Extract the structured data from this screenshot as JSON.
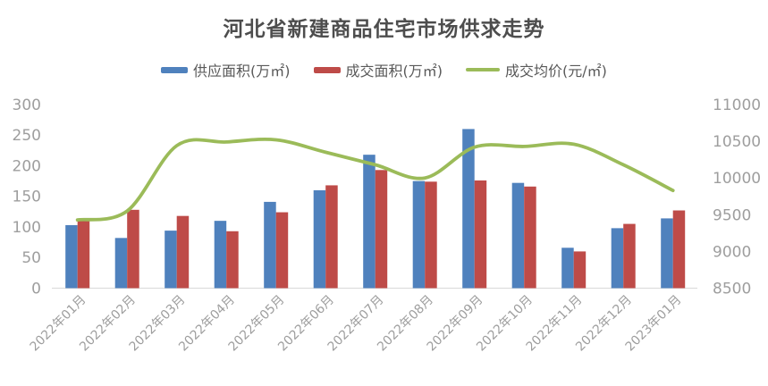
{
  "title": "河北省新建商品住宅市场供求走势",
  "legend": [
    {
      "label": "供应面积(万㎡)",
      "color": "#4f81bd",
      "type": "bar"
    },
    {
      "label": "成交面积(万㎡)",
      "color": "#be4b48",
      "type": "bar"
    },
    {
      "label": "成交均价(元/㎡)",
      "color": "#9bbb59",
      "type": "line"
    }
  ],
  "colors": {
    "supply_bar": "#4f81bd",
    "transaction_bar": "#be4b48",
    "price_line": "#9bbb59",
    "axis_text": "#9e9e9e",
    "baseline": "#d9d9d9",
    "title_text": "#4d4d4d"
  },
  "chart_data": {
    "type": "bar",
    "subtype": "grouped bars + smooth line, dual y-axes",
    "title": "河北省新建商品住宅市场供求走势",
    "categories": [
      "2022年01月",
      "2022年02月",
      "2022年03月",
      "2022年04月",
      "2022年05月",
      "2022年06月",
      "2022年07月",
      "2022年08月",
      "2022年09月",
      "2022年10月",
      "2022年11月",
      "2022年12月",
      "2023年01月"
    ],
    "series": [
      {
        "name": "供应面积(万㎡)",
        "type": "bar",
        "axis": "left",
        "color": "#4f81bd",
        "values": [
          103,
          82,
          94,
          110,
          141,
          160,
          218,
          175,
          260,
          172,
          66,
          98,
          114
        ]
      },
      {
        "name": "成交面积(万㎡)",
        "type": "bar",
        "axis": "left",
        "color": "#be4b48",
        "values": [
          111,
          128,
          118,
          93,
          124,
          168,
          193,
          174,
          176,
          166,
          60,
          105,
          127
        ]
      },
      {
        "name": "成交均价(元/㎡)",
        "type": "line",
        "axis": "right",
        "color": "#9bbb59",
        "smooth": true,
        "values": [
          9430,
          9550,
          10440,
          10490,
          10520,
          10350,
          10180,
          10000,
          10420,
          10430,
          10460,
          10180,
          9830
        ]
      }
    ],
    "left_axis": {
      "label": "",
      "min": 0,
      "max": 300,
      "step": 50,
      "ticks": [
        300,
        250,
        200,
        150,
        100,
        50,
        0
      ]
    },
    "right_axis": {
      "label": "",
      "min": 8500,
      "max": 11000,
      "step": 500,
      "ticks": [
        11000,
        10500,
        10000,
        9500,
        9000,
        8500
      ]
    },
    "grid": false,
    "legend_position": "top"
  }
}
